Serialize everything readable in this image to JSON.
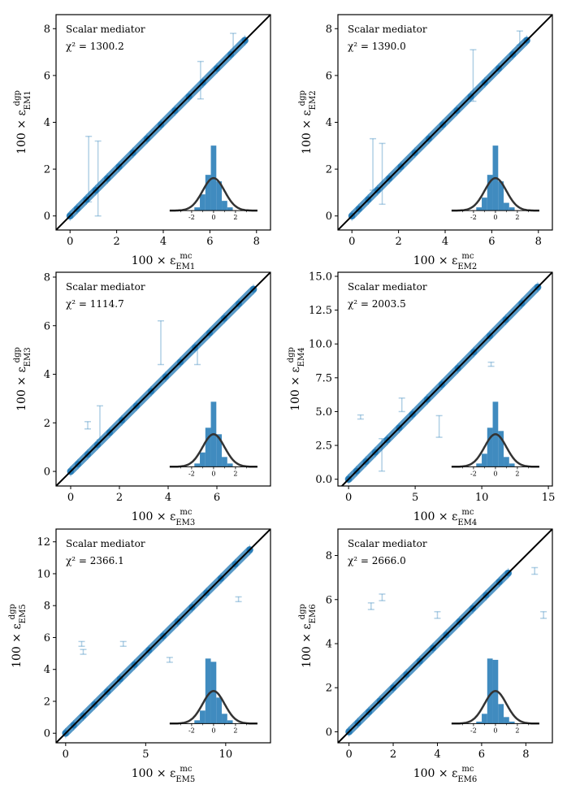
{
  "figure": {
    "colors": {
      "points": "#1f77b4",
      "diagonal": "#000000",
      "hist": "#1f77b4",
      "gauss": "#333333"
    }
  },
  "chart_data": [
    {
      "type": "scatter",
      "panel": "EM1",
      "annotation": "Scalar mediator",
      "chi2_text": "χ² = 1300.2",
      "xlabel": "100 × ε^mc_EM1",
      "ylabel": "100 × ε^dgp_EM1",
      "xlim": [
        -0.6,
        8.6
      ],
      "ylim": [
        -0.6,
        8.6
      ],
      "xticks": [
        0,
        2,
        4,
        6,
        8
      ],
      "yticks": [
        0,
        2,
        4,
        6,
        8
      ],
      "x": [
        0.0,
        0.3,
        0.7,
        1.1,
        1.6,
        2.1,
        2.7,
        3.3,
        3.9,
        4.5,
        5.1,
        5.7,
        6.3,
        6.9,
        7.5
      ],
      "y": [
        0.0,
        0.3,
        0.7,
        1.1,
        1.6,
        2.1,
        2.7,
        3.3,
        3.9,
        4.5,
        5.1,
        5.7,
        6.3,
        6.9,
        7.5
      ],
      "outliers": [
        {
          "x": 0.8,
          "y": 2.0,
          "err": 2.8
        },
        {
          "x": 1.2,
          "y": 1.6,
          "err": 3.2
        },
        {
          "x": 5.6,
          "y": 5.8,
          "err": 1.6
        },
        {
          "x": 7.0,
          "y": 7.4,
          "err": 0.8
        }
      ],
      "inset": {
        "xticks": [
          -2,
          0,
          2
        ],
        "bins": [
          -1.5,
          -1.0,
          -0.5,
          0.0,
          0.5,
          1.0,
          1.5
        ],
        "heights": [
          0.05,
          0.25,
          0.55,
          1.0,
          0.45,
          0.15,
          0.05
        ]
      }
    },
    {
      "type": "scatter",
      "panel": "EM2",
      "annotation": "Scalar mediator",
      "chi2_text": "χ² = 1390.0",
      "xlabel": "100 × ε^mc_EM2",
      "ylabel": "100 × ε^dgp_EM2",
      "xlim": [
        -0.6,
        8.6
      ],
      "ylim": [
        -0.6,
        8.6
      ],
      "xticks": [
        0,
        2,
        4,
        6,
        8
      ],
      "yticks": [
        0,
        2,
        4,
        6,
        8
      ],
      "x": [
        0.0,
        0.3,
        0.7,
        1.1,
        1.6,
        2.1,
        2.7,
        3.3,
        3.9,
        4.5,
        5.1,
        5.7,
        6.3,
        6.9,
        7.5
      ],
      "y": [
        0.0,
        0.3,
        0.7,
        1.1,
        1.6,
        2.1,
        2.7,
        3.3,
        3.9,
        4.5,
        5.1,
        5.7,
        6.3,
        6.9,
        7.5
      ],
      "outliers": [
        {
          "x": 0.9,
          "y": 2.2,
          "err": 2.2
        },
        {
          "x": 1.3,
          "y": 1.8,
          "err": 2.6
        },
        {
          "x": 5.2,
          "y": 6.0,
          "err": 2.2
        },
        {
          "x": 7.2,
          "y": 7.6,
          "err": 0.6
        }
      ],
      "inset": {
        "xticks": [
          -2,
          0,
          2
        ],
        "bins": [
          -1.5,
          -1.0,
          -0.5,
          0.0,
          0.5,
          1.0,
          1.5
        ],
        "heights": [
          0.05,
          0.2,
          0.55,
          1.0,
          0.45,
          0.12,
          0.05
        ]
      }
    },
    {
      "type": "scatter",
      "panel": "EM3",
      "annotation": "Scalar mediator",
      "chi2_text": "χ² = 1114.7",
      "xlabel": "100 × ε^mc_EM3",
      "ylabel": "100 × ε^dgp_EM3",
      "xlim": [
        -0.6,
        8.2
      ],
      "ylim": [
        -0.6,
        8.2
      ],
      "xticks": [
        0,
        2,
        4,
        6
      ],
      "yticks": [
        0,
        2,
        4,
        6,
        8
      ],
      "x": [
        0.0,
        0.3,
        0.7,
        1.1,
        1.6,
        2.1,
        2.7,
        3.3,
        3.9,
        4.5,
        5.1,
        5.7,
        6.3,
        6.9,
        7.5
      ],
      "y": [
        0.0,
        0.3,
        0.7,
        1.1,
        1.6,
        2.1,
        2.7,
        3.3,
        3.9,
        4.5,
        5.1,
        5.7,
        6.3,
        6.9,
        7.5
      ],
      "outliers": [
        {
          "x": 0.7,
          "y": 1.9,
          "err": 0.3
        },
        {
          "x": 1.2,
          "y": 2.0,
          "err": 1.4
        },
        {
          "x": 3.7,
          "y": 5.3,
          "err": 1.8
        },
        {
          "x": 5.2,
          "y": 4.8,
          "err": 0.8
        }
      ],
      "inset": {
        "xticks": [
          -2,
          0,
          2
        ],
        "bins": [
          -1.5,
          -1.0,
          -0.5,
          0.0,
          0.5,
          1.0,
          1.5
        ],
        "heights": [
          0.05,
          0.22,
          0.6,
          1.0,
          0.5,
          0.15,
          0.05
        ]
      }
    },
    {
      "type": "scatter",
      "panel": "EM4",
      "annotation": "Scalar mediator",
      "chi2_text": "χ² = 2003.5",
      "xlabel": "100 × ε^mc_EM4",
      "ylabel": "100 × ε^dgp_EM4",
      "xlim": [
        -0.8,
        15.3
      ],
      "ylim": [
        -0.5,
        15.3
      ],
      "xticks": [
        0,
        5,
        10,
        15
      ],
      "yticks": [
        0.0,
        2.5,
        5.0,
        7.5,
        10.0,
        12.5,
        15.0
      ],
      "ytick_labels": [
        "0.0",
        "2.5",
        "5.0",
        "7.5",
        "10.0",
        "12.5",
        "15.0"
      ],
      "x": [
        0.0,
        0.6,
        1.3,
        2.0,
        2.9,
        3.8,
        4.8,
        5.9,
        7.0,
        8.2,
        9.4,
        10.6,
        11.8,
        13.0,
        14.2
      ],
      "y": [
        0.0,
        0.6,
        1.3,
        2.0,
        2.9,
        3.8,
        4.8,
        5.9,
        7.0,
        8.2,
        9.4,
        10.6,
        11.8,
        13.0,
        14.2
      ],
      "outliers": [
        {
          "x": 0.9,
          "y": 4.6,
          "err": 0.3
        },
        {
          "x": 2.5,
          "y": 1.8,
          "err": 2.4
        },
        {
          "x": 4.0,
          "y": 5.5,
          "err": 1.0
        },
        {
          "x": 6.8,
          "y": 3.9,
          "err": 1.6
        },
        {
          "x": 10.7,
          "y": 8.5,
          "err": 0.3
        }
      ],
      "inset": {
        "xticks": [
          -2,
          0,
          2
        ],
        "bins": [
          -1.5,
          -1.0,
          -0.5,
          0.0,
          0.5,
          1.0,
          1.5
        ],
        "heights": [
          0.05,
          0.2,
          0.6,
          1.0,
          0.55,
          0.15,
          0.05
        ]
      }
    },
    {
      "type": "scatter",
      "panel": "EM5",
      "annotation": "Scalar mediator",
      "chi2_text": "χ² = 2366.1",
      "xlabel": "100 × ε^mc_EM5",
      "ylabel": "100 × ε^dgp_EM5",
      "xlim": [
        -0.6,
        12.8
      ],
      "ylim": [
        -0.6,
        12.8
      ],
      "xticks": [
        0,
        5,
        10
      ],
      "yticks": [
        0,
        2,
        4,
        6,
        8,
        10,
        12
      ],
      "x": [
        0.0,
        0.5,
        1.1,
        1.8,
        2.6,
        3.4,
        4.3,
        5.2,
        6.1,
        7.0,
        7.9,
        8.8,
        9.7,
        10.6,
        11.5
      ],
      "y": [
        0.0,
        0.5,
        1.1,
        1.8,
        2.6,
        3.4,
        4.3,
        5.2,
        6.1,
        7.0,
        7.9,
        8.8,
        9.7,
        10.6,
        11.5
      ],
      "outliers": [
        {
          "x": 1.0,
          "y": 5.6,
          "err": 0.3
        },
        {
          "x": 1.1,
          "y": 5.1,
          "err": 0.3
        },
        {
          "x": 3.6,
          "y": 5.6,
          "err": 0.3
        },
        {
          "x": 6.5,
          "y": 4.6,
          "err": 0.3
        },
        {
          "x": 10.8,
          "y": 8.4,
          "err": 0.3
        }
      ],
      "inset": {
        "xticks": [
          -2,
          0,
          2
        ],
        "bins": [
          -1.5,
          -1.0,
          -0.5,
          0.0,
          0.5,
          1.0,
          1.5
        ],
        "heights": [
          0.05,
          0.2,
          1.0,
          0.95,
          0.4,
          0.15,
          0.05
        ]
      }
    },
    {
      "type": "scatter",
      "panel": "EM6",
      "annotation": "Scalar mediator",
      "chi2_text": "χ² = 2666.0",
      "xlabel": "100 × ε^mc_EM6",
      "ylabel": "100 × ε^dgp_EM6",
      "xlim": [
        -0.5,
        9.2
      ],
      "ylim": [
        -0.5,
        9.2
      ],
      "xticks": [
        0,
        2,
        4,
        6,
        8
      ],
      "yticks": [
        0,
        2,
        4,
        6,
        8
      ],
      "x": [
        0.0,
        0.4,
        0.9,
        1.4,
        2.0,
        2.6,
        3.2,
        3.8,
        4.4,
        5.0,
        5.6,
        6.2,
        6.8,
        7.2
      ],
      "y": [
        0.0,
        0.4,
        0.9,
        1.4,
        2.0,
        2.6,
        3.2,
        3.8,
        4.4,
        5.0,
        5.6,
        6.2,
        6.8,
        7.2
      ],
      "outliers": [
        {
          "x": 1.0,
          "y": 5.7,
          "err": 0.3
        },
        {
          "x": 1.5,
          "y": 6.1,
          "err": 0.3
        },
        {
          "x": 4.0,
          "y": 5.3,
          "err": 0.3
        },
        {
          "x": 8.4,
          "y": 7.3,
          "err": 0.3
        },
        {
          "x": 8.8,
          "y": 5.3,
          "err": 0.3
        }
      ],
      "inset": {
        "xticks": [
          -2,
          0,
          2
        ],
        "bins": [
          -1.5,
          -1.0,
          -0.5,
          0.0,
          0.5,
          1.0,
          1.5
        ],
        "heights": [
          0.03,
          0.15,
          1.0,
          0.98,
          0.3,
          0.1,
          0.03
        ]
      }
    }
  ]
}
